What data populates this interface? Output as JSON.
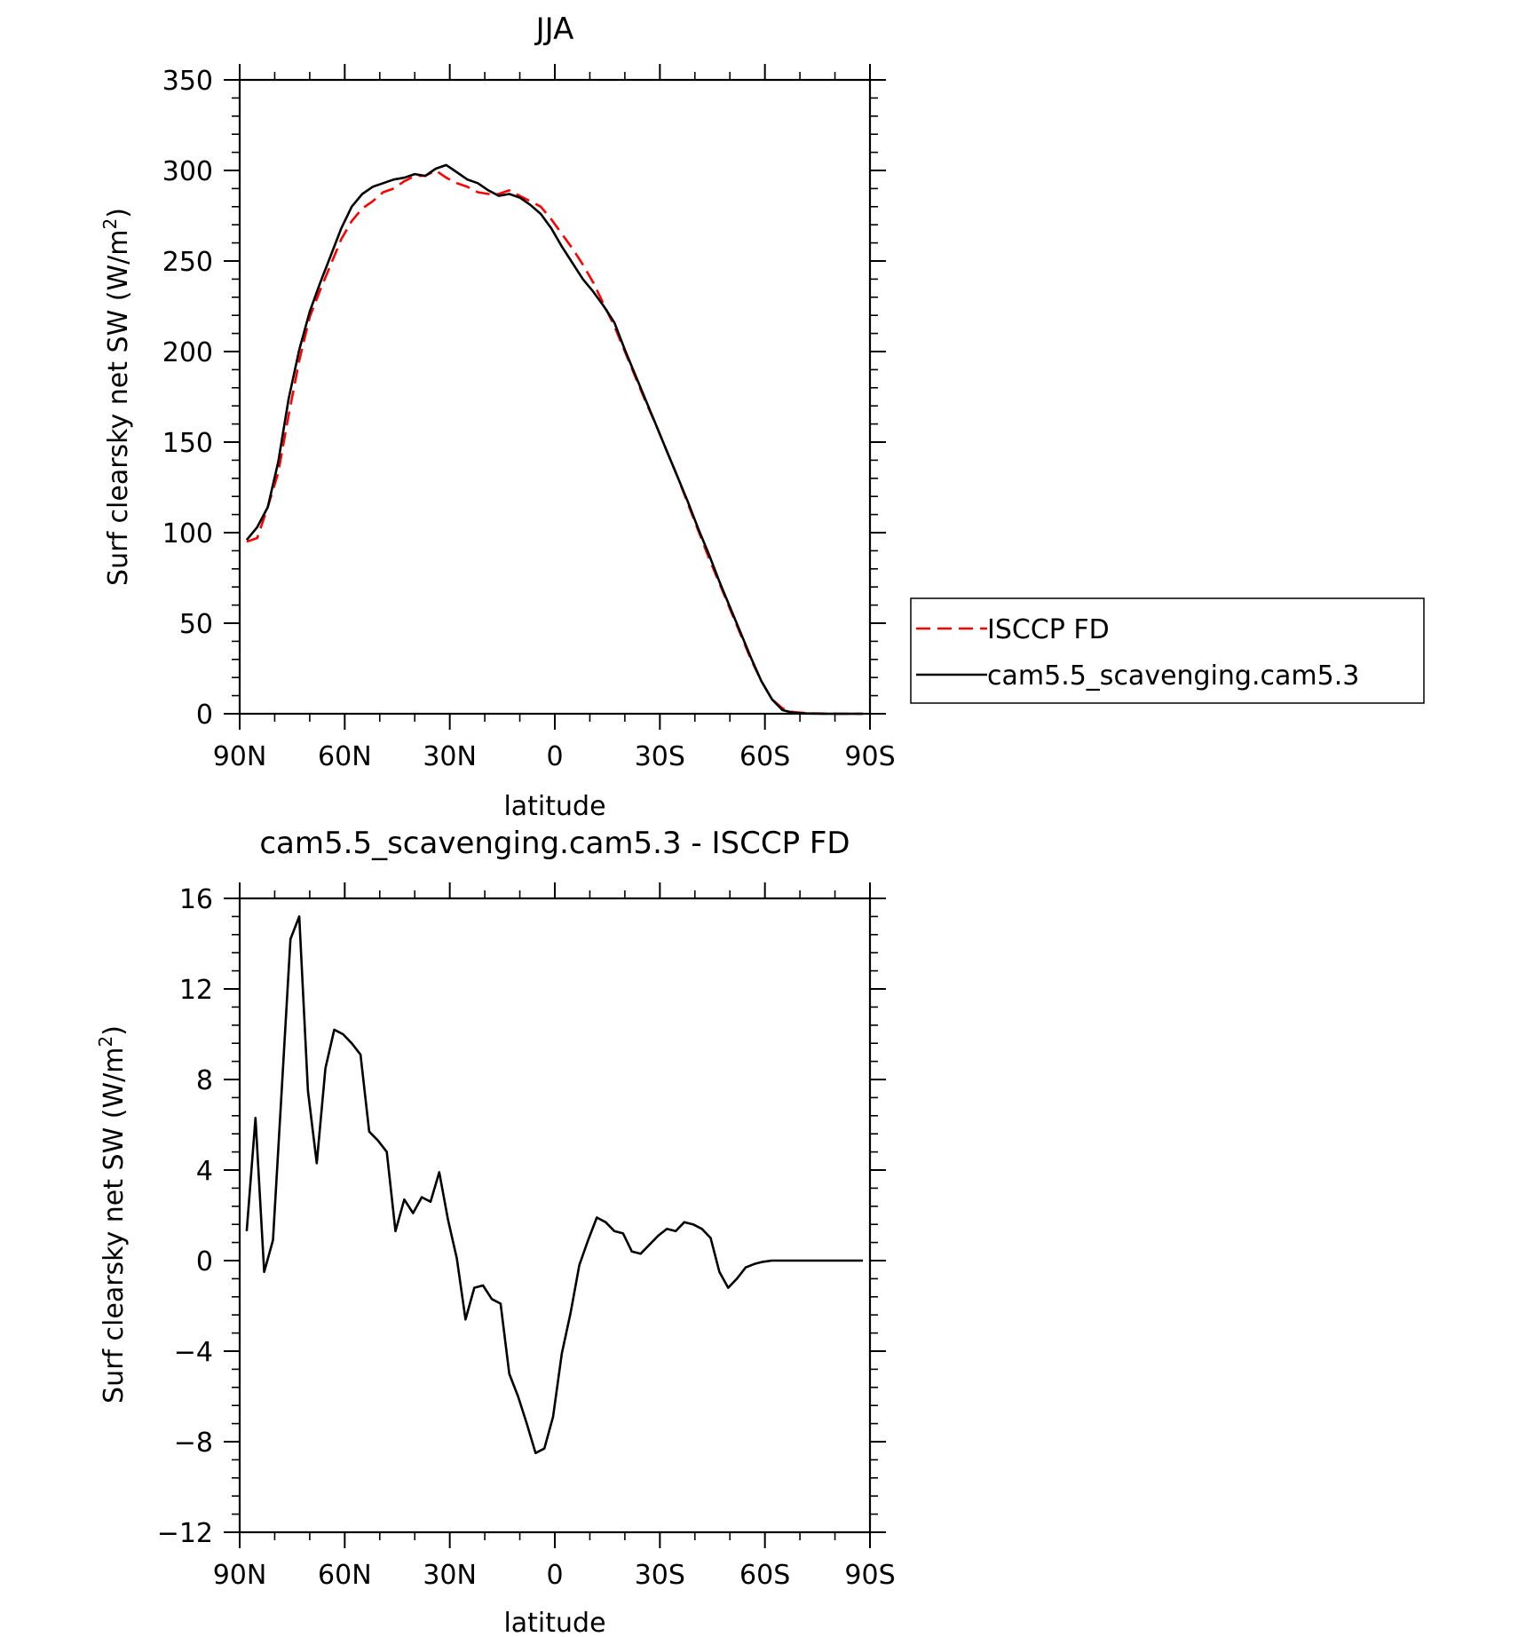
{
  "chart_data": [
    {
      "type": "line",
      "title": "JJA",
      "xlabel": "latitude",
      "ylabel_main": "Surf clearsky net SW (W/m",
      "ylabel_sup": "2",
      "ylabel_close": ")",
      "xlim": [
        90,
        -90
      ],
      "ylim": [
        0,
        350
      ],
      "xticks": [
        90,
        60,
        30,
        0,
        -30,
        -60,
        -90
      ],
      "xticklabels": [
        "90N",
        "60N",
        "30N",
        "0",
        "30S",
        "60S",
        "90S"
      ],
      "yticks": [
        0,
        50,
        100,
        150,
        200,
        250,
        300,
        350
      ],
      "yticklabels": [
        "0",
        "50",
        "100",
        "150",
        "200",
        "250",
        "300",
        "350"
      ],
      "legend": "right",
      "series": [
        {
          "name": "ISCCP FD",
          "color": "#ff0000",
          "dash": "dashed",
          "x": [
            88,
            85,
            82,
            79,
            76,
            73,
            70,
            67,
            64,
            61,
            58,
            55,
            52,
            49,
            46,
            43,
            40,
            37,
            34,
            31,
            28,
            25,
            22,
            19,
            16,
            13,
            10,
            7,
            4,
            1,
            -2,
            -5,
            -8,
            -11,
            -14,
            -17,
            -20,
            -23,
            -26,
            -29,
            -32,
            -35,
            -38,
            -41,
            -44,
            -47,
            -50,
            -53,
            -56,
            -59,
            -62,
            -65,
            -68,
            -71,
            -74,
            -77,
            -80,
            -83,
            -86,
            -88
          ],
          "y": [
            95,
            97,
            114,
            133,
            165,
            195,
            219,
            234,
            248,
            262,
            272,
            279,
            283,
            288,
            290,
            294,
            297,
            297,
            300,
            296,
            293,
            291,
            288,
            287,
            287,
            289,
            286,
            283,
            280,
            273,
            265,
            257,
            248,
            238,
            226,
            214,
            200,
            186,
            172,
            159,
            145,
            131,
            116,
            101,
            86,
            72,
            58,
            44,
            30,
            18,
            8,
            3,
            1,
            0.5,
            0.2,
            0.1,
            0,
            0,
            0,
            0
          ]
        },
        {
          "name": "cam5.5_scavenging.cam5.3",
          "color": "#000000",
          "dash": "solid",
          "x": [
            88,
            85,
            82,
            79,
            76,
            73,
            70,
            67,
            64,
            61,
            58,
            55,
            52,
            49,
            46,
            43,
            40,
            37,
            34,
            31,
            28,
            25,
            22,
            19,
            16,
            13,
            10,
            7,
            4,
            1,
            -2,
            -5,
            -8,
            -11,
            -14,
            -17,
            -20,
            -23,
            -26,
            -29,
            -32,
            -35,
            -38,
            -41,
            -44,
            -47,
            -50,
            -53,
            -56,
            -59,
            -62,
            -65,
            -68,
            -71,
            -74,
            -77,
            -80,
            -83,
            -86,
            -88
          ],
          "y": [
            96,
            103,
            114,
            139,
            174,
            201,
            222,
            238,
            253,
            268,
            280,
            287,
            291,
            293,
            295,
            296,
            298,
            297,
            301,
            303,
            299,
            295,
            293,
            289,
            286,
            287,
            285,
            281,
            276,
            268,
            258,
            249,
            240,
            233,
            225,
            216,
            201,
            187,
            173,
            159,
            145,
            131,
            117,
            102,
            88,
            73,
            59,
            45,
            31,
            18,
            8,
            2,
            0.6,
            0.2,
            0.1,
            0,
            0,
            0,
            0,
            0
          ]
        }
      ]
    },
    {
      "type": "line",
      "title": "cam5.5_scavenging.cam5.3 - ISCCP FD",
      "xlabel": "latitude",
      "ylabel_main": "Surf clearsky net SW (W/m",
      "ylabel_sup": "2",
      "ylabel_close": ")",
      "xlim": [
        90,
        -90
      ],
      "ylim": [
        -12,
        16
      ],
      "xticks": [
        90,
        60,
        30,
        0,
        -30,
        -60,
        -90
      ],
      "xticklabels": [
        "90N",
        "60N",
        "30N",
        "0",
        "30S",
        "60S",
        "90S"
      ],
      "yticks": [
        -12,
        -8,
        -4,
        0,
        4,
        8,
        12,
        16
      ],
      "yticklabels": [
        "−12",
        "−8",
        "−4",
        "0",
        "4",
        "8",
        "12",
        "16"
      ],
      "series": [
        {
          "color": "#000000",
          "dash": "solid",
          "x": [
            88,
            85.5,
            83,
            80.5,
            78,
            75.5,
            73,
            70.5,
            68,
            65.5,
            63,
            60.5,
            58,
            55.5,
            53,
            50.5,
            48,
            45.5,
            43,
            40.5,
            38,
            35.5,
            33,
            30.5,
            28,
            25.5,
            23,
            20.5,
            18,
            15.5,
            13,
            10.5,
            8,
            5.5,
            3,
            0.5,
            -2,
            -4.5,
            -7,
            -9.5,
            -12,
            -14.5,
            -17,
            -19.5,
            -22,
            -24.5,
            -27,
            -29.5,
            -32,
            -34.5,
            -37,
            -39.5,
            -42,
            -44.5,
            -47,
            -49.5,
            -52,
            -54.5,
            -57,
            -59.5,
            -62,
            -64.5,
            -67,
            -69.5,
            -72,
            -74.5,
            -77,
            -79.5,
            -82,
            -84.5,
            -87,
            -88
          ],
          "y": [
            1.3,
            6.3,
            -0.5,
            0.9,
            7.5,
            14.2,
            15.2,
            7.5,
            4.3,
            8.5,
            10.2,
            10.0,
            9.6,
            9.1,
            5.7,
            5.3,
            4.8,
            1.3,
            2.7,
            2.1,
            2.8,
            2.6,
            3.9,
            1.8,
            0.1,
            -2.6,
            -1.2,
            -1.1,
            -1.7,
            -1.9,
            -5.0,
            -6.0,
            -7.2,
            -8.5,
            -8.3,
            -6.9,
            -4.1,
            -2.3,
            -0.2,
            0.9,
            1.9,
            1.7,
            1.3,
            1.2,
            0.4,
            0.3,
            0.7,
            1.1,
            1.4,
            1.3,
            1.7,
            1.6,
            1.4,
            1.0,
            -0.5,
            -1.2,
            -0.8,
            -0.3,
            -0.15,
            -0.05,
            0,
            0,
            0,
            0,
            0,
            0,
            0,
            0,
            0,
            0,
            0,
            0
          ]
        }
      ]
    }
  ]
}
